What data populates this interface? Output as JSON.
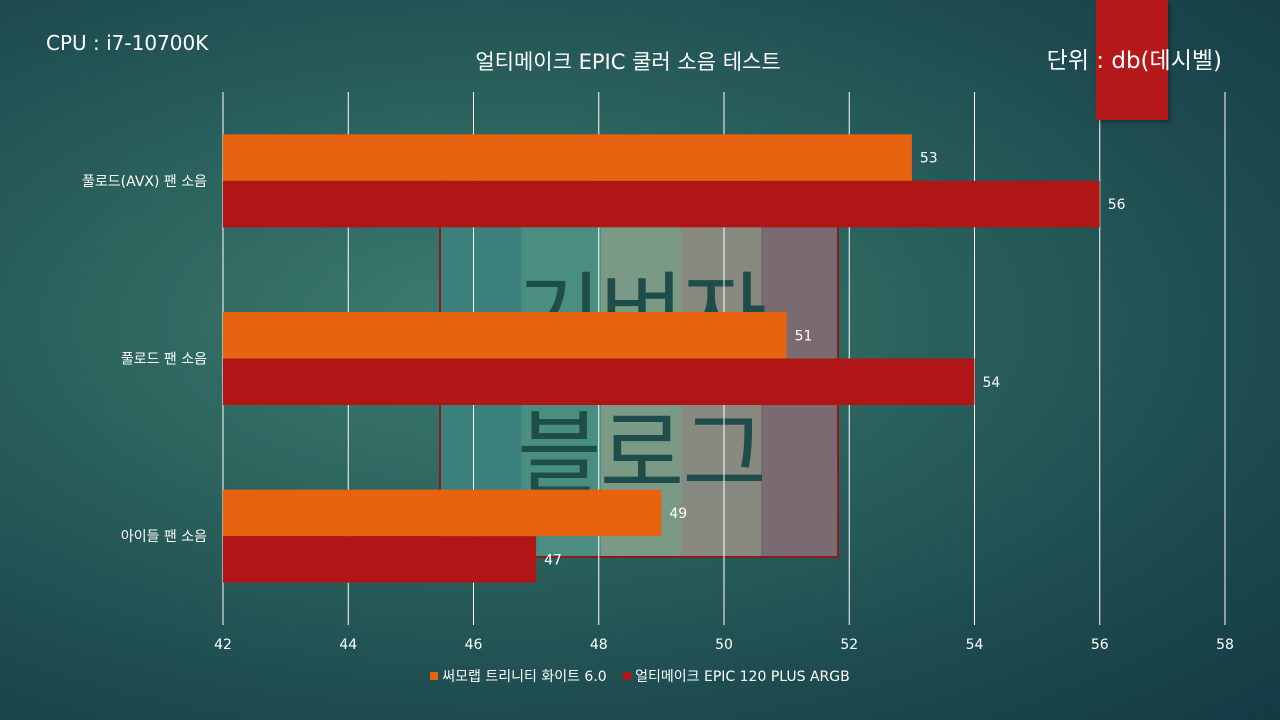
{
  "header": {
    "cpu_label": "CPU : i7-10700K",
    "unit_prefix": "단위 : ",
    "unit_value": "db(데시벨)"
  },
  "watermark": {
    "line1": "기벼자",
    "line2": "블로그"
  },
  "colors": {
    "series_orange": "#e8630f",
    "series_red": "#b01615",
    "accent_red": "#b5181b"
  },
  "chart_data": {
    "type": "bar",
    "orientation": "horizontal",
    "title": "얼티메이크 EPIC 쿨러 소음 테스트",
    "categories": [
      "풀로드(AVX) 팬 소음",
      "풀로드 팬 소음",
      "아이들 팬 소음"
    ],
    "series": [
      {
        "name": "써모랩 트리니티 화이트 6.0",
        "values": [
          53,
          51,
          49
        ],
        "color": "#e8630f"
      },
      {
        "name": "얼티메이크 EPIC 120 PLUS ARGB",
        "values": [
          56,
          54,
          47
        ],
        "color": "#b01615"
      }
    ],
    "xlim": [
      42,
      58
    ],
    "xticks": [
      "42",
      "44",
      "46",
      "48",
      "50",
      "52",
      "54",
      "56",
      "58"
    ],
    "grid": true,
    "data_labels": true,
    "legend_position": "bottom"
  }
}
